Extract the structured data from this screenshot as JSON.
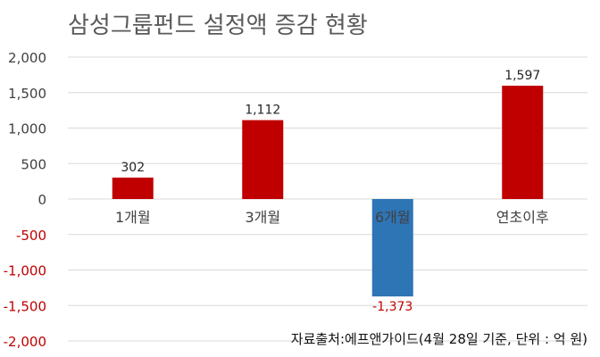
{
  "chart_data": {
    "type": "bar",
    "title": "삼성그룹펀드 설정액 증감 현황",
    "source_note": "자료출처:에프앤가이드(4월 28일 기준, 단위 : 억 원)",
    "categories": [
      "1개월",
      "3개월",
      "6개월",
      "연초이후"
    ],
    "values": [
      302,
      1112,
      -1373,
      1597
    ],
    "data_labels": [
      "302",
      "1,112",
      "-1,373",
      "1,597"
    ],
    "ylim": [
      -2000,
      2000
    ],
    "yticks": [
      2000,
      1500,
      1000,
      500,
      0,
      -500,
      -1000,
      -1500,
      -2000
    ],
    "ytick_labels": [
      "2,000",
      "1,500",
      "1,000",
      "500",
      "0",
      "-500",
      "-1,000",
      "-1,500",
      "-2,000"
    ],
    "grid": true,
    "xlabel": "",
    "ylabel": "",
    "colors": {
      "positive_bar": "#c00000",
      "negative_bar": "#2e75b6",
      "positive_tick": "#404040",
      "negative_tick": "#c00000",
      "negative_data_label": "#c00000",
      "gridline": "#d9d9d9",
      "title": "#595959"
    }
  }
}
